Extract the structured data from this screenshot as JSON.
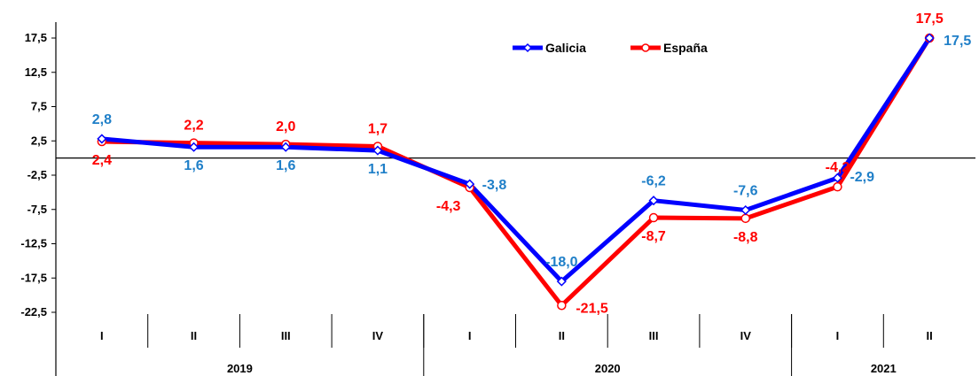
{
  "chart_data": {
    "type": "line",
    "categories": [
      "I",
      "II",
      "III",
      "IV",
      "I",
      "II",
      "III",
      "IV",
      "I",
      "II"
    ],
    "years": [
      {
        "label": "2019",
        "start": 0,
        "end": 3
      },
      {
        "label": "2020",
        "start": 4,
        "end": 7
      },
      {
        "label": "2021",
        "start": 8,
        "end": 9
      }
    ],
    "yticks": [
      "17,5",
      "12,5",
      "7,5",
      "2,5",
      "-2,5",
      "-7,5",
      "-12,5",
      "-17,5",
      "-22,5"
    ],
    "ytick_values": [
      17.5,
      12.5,
      7.5,
      2.5,
      -2.5,
      -7.5,
      -12.5,
      -17.5,
      -22.5
    ],
    "ylim": [
      -22.5,
      17.5
    ],
    "series": [
      {
        "name": "Galicia",
        "color": "#0000ff",
        "label_color": "#1f7fc8",
        "values": [
          2.8,
          1.6,
          1.6,
          1.1,
          -3.8,
          -18.0,
          -6.2,
          -7.6,
          -2.9,
          17.5
        ],
        "labels": [
          "2,8",
          "1,6",
          "1,6",
          "1,1",
          "-3,8",
          "-18,0",
          "-6,2",
          "-7,6",
          "-2,9",
          "17,5"
        ]
      },
      {
        "name": "España",
        "color": "#ff0000",
        "label_color": "#ff0000",
        "values": [
          2.4,
          2.2,
          2.0,
          1.7,
          -4.3,
          -21.5,
          -8.7,
          -8.8,
          -4.2,
          17.5
        ],
        "labels": [
          "2,4",
          "2,2",
          "2,0",
          "1,7",
          "-4,3",
          "-21,5",
          "-8,7",
          "-8,8",
          "-4,2",
          "17,5"
        ]
      }
    ],
    "legend": "top-center",
    "grid": false
  }
}
